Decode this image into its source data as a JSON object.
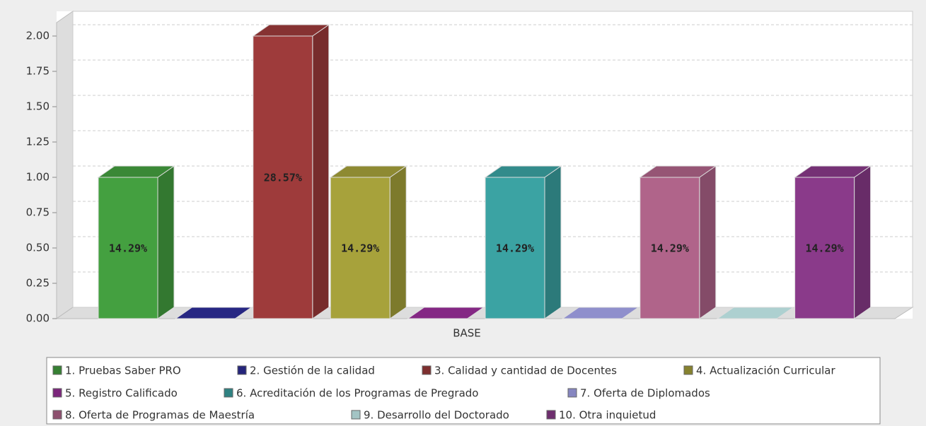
{
  "chart_data": {
    "type": "bar",
    "x_label": "BASE",
    "ylim": [
      0,
      2
    ],
    "yticks": [
      {
        "value": 0,
        "label": "0.00"
      },
      {
        "value": 0.25,
        "label": "0.25"
      },
      {
        "value": 0.5,
        "label": "0.50"
      },
      {
        "value": 0.75,
        "label": "0.75"
      },
      {
        "value": 1,
        "label": "1.00"
      },
      {
        "value": 1.25,
        "label": "1.25"
      },
      {
        "value": 1.5,
        "label": "1.50"
      },
      {
        "value": 1.75,
        "label": "1.75"
      },
      {
        "value": 2,
        "label": "2.00"
      }
    ],
    "grid": true,
    "series": [
      {
        "name": "1. Pruebas Saber PRO",
        "color": "#44a040",
        "values": [
          1
        ],
        "value_labels": [
          "14.29%"
        ]
      },
      {
        "name": "2. Gestión de la calidad",
        "color": "#2e2e9a",
        "values": [
          0
        ],
        "value_labels": [
          null
        ]
      },
      {
        "name": "3. Calidad y cantidad de Docentes",
        "color": "#9e3b3b",
        "values": [
          2
        ],
        "value_labels": [
          "28.57%"
        ]
      },
      {
        "name": "4. Actualización Curricular",
        "color": "#a7a23b",
        "values": [
          1
        ],
        "value_labels": [
          "14.29%"
        ]
      },
      {
        "name": "5. Registro Calificado",
        "color": "#9b2f9b",
        "values": [
          0
        ],
        "value_labels": [
          null
        ]
      },
      {
        "name": "6. Acreditación de los Programas de Pregrado",
        "color": "#3ba3a3",
        "values": [
          1
        ],
        "value_labels": [
          "14.29%"
        ]
      },
      {
        "name": "7. Oferta de Diplomados",
        "color": "#a8a8f0",
        "values": [
          0
        ],
        "value_labels": [
          null
        ]
      },
      {
        "name": "8. Oferta de Programas de Maestría",
        "color": "#b0648a",
        "values": [
          1
        ],
        "value_labels": [
          "14.29%"
        ]
      },
      {
        "name": "9. Desarrollo del Doctorado",
        "color": "#ccf5f5",
        "values": [
          0
        ],
        "value_labels": [
          null
        ]
      },
      {
        "name": "10. Otra inquietud",
        "color": "#8a3a8a",
        "values": [
          1
        ],
        "value_labels": [
          "14.29%"
        ]
      }
    ]
  }
}
